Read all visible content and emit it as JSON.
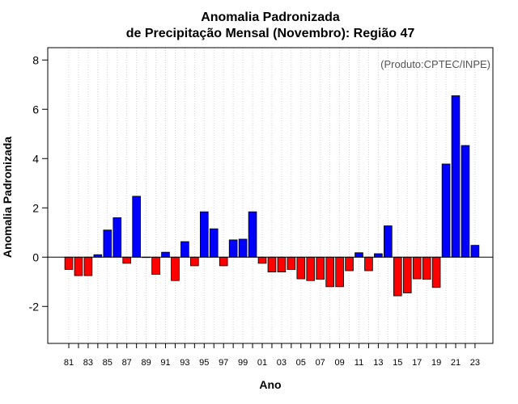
{
  "chart_data": {
    "type": "bar",
    "title": [
      "Anomalia Padronizada",
      "de Precipitação Mensal (Novembro): Região 47"
    ],
    "xlabel": "Ano",
    "ylabel": "Anomalia Padronizada",
    "annotation": "(Produto:CPTEC/INPE)",
    "ylim": [
      -3.5,
      8.5
    ],
    "yticks": [
      -2,
      0,
      2,
      4,
      6,
      8
    ],
    "xtick_labels": [
      "81",
      "83",
      "85",
      "87",
      "89",
      "91",
      "93",
      "95",
      "97",
      "99",
      "01",
      "03",
      "05",
      "07",
      "09",
      "11",
      "13",
      "15",
      "17",
      "19",
      "21",
      "23"
    ],
    "categories": [
      "1981",
      "1982",
      "1983",
      "1984",
      "1985",
      "1986",
      "1987",
      "1988",
      "1989",
      "1990",
      "1991",
      "1992",
      "1993",
      "1994",
      "1995",
      "1996",
      "1997",
      "1998",
      "1999",
      "2000",
      "2001",
      "2002",
      "2003",
      "2004",
      "2005",
      "2006",
      "2007",
      "2008",
      "2009",
      "2010",
      "2011",
      "2012",
      "2013",
      "2014",
      "2015",
      "2016",
      "2017",
      "2018",
      "2019",
      "2020",
      "2021",
      "2022",
      "2023"
    ],
    "values": [
      -0.5,
      -0.75,
      -0.75,
      0.1,
      1.1,
      1.6,
      -0.25,
      2.47,
      0.0,
      -0.7,
      0.2,
      -0.95,
      0.63,
      -0.35,
      1.84,
      1.15,
      -0.35,
      0.7,
      0.73,
      1.84,
      -0.25,
      -0.6,
      -0.6,
      -0.5,
      -0.88,
      -0.95,
      -0.9,
      -1.2,
      -1.2,
      -0.55,
      0.18,
      -0.55,
      0.14,
      1.27,
      -1.57,
      -1.45,
      -0.88,
      -0.9,
      -1.23,
      3.78,
      6.55,
      4.53,
      0.48
    ],
    "grid": true,
    "colors": {
      "positive": "#0000ff",
      "negative": "#ff0000",
      "zero_line": "#000000",
      "grid": "#d3d3d3"
    }
  }
}
